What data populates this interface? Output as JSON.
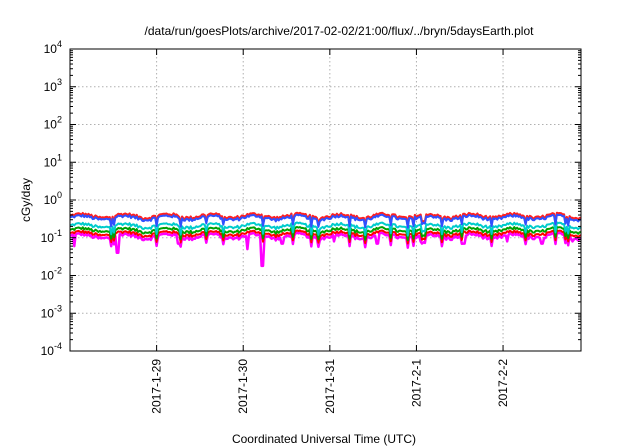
{
  "chart_data": {
    "type": "line",
    "title": "/data/run/goesPlots/archive/2017-02-02/21:00/flux/../bryn/5daysEarth.plot",
    "xlabel": "Coordinated Universal Time (UTC)",
    "ylabel": "cGy/day",
    "yscale": "log",
    "ylim": [
      0.0001,
      10000
    ],
    "y_ticks": [
      {
        "base": "10",
        "exp": "-4"
      },
      {
        "base": "10",
        "exp": "-3"
      },
      {
        "base": "10",
        "exp": "-2"
      },
      {
        "base": "10",
        "exp": "-1"
      },
      {
        "base": "10",
        "exp": "0"
      },
      {
        "base": "10",
        "exp": "1"
      },
      {
        "base": "10",
        "exp": "2"
      },
      {
        "base": "10",
        "exp": "3"
      },
      {
        "base": "10",
        "exp": "4"
      }
    ],
    "xlim_days": [
      0,
      5.9
    ],
    "x_ticks": [
      {
        "label": "2017-1-29",
        "day": 1
      },
      {
        "label": "2017-1-30",
        "day": 2
      },
      {
        "label": "2017-1-31",
        "day": 3
      },
      {
        "label": "2017-2-1",
        "day": 4
      },
      {
        "label": "2017-2-2",
        "day": 5
      }
    ],
    "grid": true,
    "legend": "none",
    "series": [
      {
        "color": "#ff00ff",
        "level": 0.11,
        "dips": [
          [
            0.05,
            0.06
          ],
          [
            0.55,
            0.04
          ],
          [
            1.25,
            0.07
          ],
          [
            2.05,
            0.05
          ],
          [
            2.22,
            0.018
          ],
          [
            2.45,
            0.07
          ],
          [
            3.05,
            0.08
          ],
          [
            3.55,
            0.07
          ],
          [
            4.05,
            0.08
          ],
          [
            4.55,
            0.07
          ],
          [
            5.05,
            0.08
          ],
          [
            5.45,
            0.07
          ],
          [
            5.8,
            0.08
          ]
        ]
      },
      {
        "color": "#ff0000",
        "level": 0.13,
        "dips": []
      },
      {
        "color": "#00a000",
        "level": 0.16,
        "dips": []
      },
      {
        "color": "#00cccc",
        "level": 0.21,
        "dips": []
      },
      {
        "color": "#ff2020",
        "level": 0.38,
        "dips": []
      },
      {
        "color": "#3050ff",
        "level": 0.34,
        "dips": []
      }
    ]
  }
}
